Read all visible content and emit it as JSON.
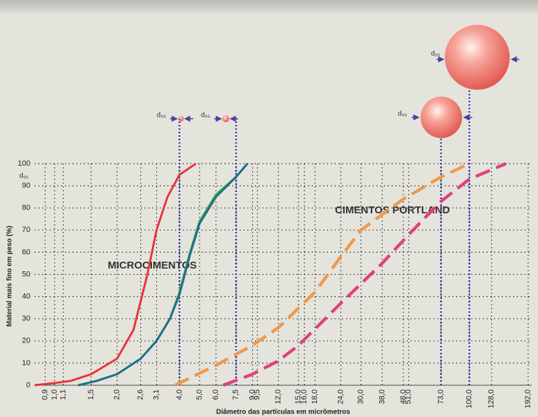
{
  "chart_data": {
    "type": "line",
    "y_label": "Material mais fino em peso (%)",
    "x_label": "Diâmetro das partículas em micrômetros",
    "log_x": true,
    "grid": true,
    "xlim": [
      0.8,
      200
    ],
    "ylim": [
      0,
      100
    ],
    "xticks": [
      {
        "value": 0.9,
        "label": "0,9"
      },
      {
        "value": 1.0,
        "label": "1,0"
      },
      {
        "value": 1.1,
        "label": "1,1"
      },
      {
        "value": 1.5,
        "label": "1,5"
      },
      {
        "value": 2.0,
        "label": "2,0"
      },
      {
        "value": 2.6,
        "label": "2,6"
      },
      {
        "value": 3.1,
        "label": "3,1"
      },
      {
        "value": 4.0,
        "label": "4,0"
      },
      {
        "value": 5.0,
        "label": "5,0"
      },
      {
        "value": 6.0,
        "label": "6,0"
      },
      {
        "value": 7.5,
        "label": "7,5"
      },
      {
        "value": 9.0,
        "label": "9,0"
      },
      {
        "value": 9.5,
        "label": "9,5"
      },
      {
        "value": 12.0,
        "label": "12,0"
      },
      {
        "value": 15.0,
        "label": "15,0"
      },
      {
        "value": 16.0,
        "label": "16,0"
      },
      {
        "value": 18.0,
        "label": "18,0"
      },
      {
        "value": 24.0,
        "label": "24,0"
      },
      {
        "value": 30.0,
        "label": "30,0"
      },
      {
        "value": 38.0,
        "label": "38,0"
      },
      {
        "value": 48.0,
        "label": "48,0"
      },
      {
        "value": 51.0,
        "label": "51,0"
      },
      {
        "value": 73.0,
        "label": "73,0"
      },
      {
        "value": 100.0,
        "label": "100,0"
      },
      {
        "value": 128.0,
        "label": "128,0"
      },
      {
        "value": 192.0,
        "label": "192,0"
      }
    ],
    "yticks": [
      0,
      10,
      20,
      30,
      40,
      50,
      60,
      70,
      80,
      90,
      100
    ],
    "series": [
      {
        "color": "#e8333a",
        "dashed": false,
        "x": [
          0.8,
          1.0,
          1.2,
          1.5,
          2.0,
          2.4,
          2.8,
          3.1,
          3.5,
          4.0,
          4.8
        ],
        "values": [
          0,
          1,
          2,
          5,
          12,
          25,
          50,
          70,
          85,
          95,
          100
        ]
      },
      {
        "color": "#3fae3a",
        "dashed": false,
        "x": [
          1.3,
          1.6,
          2.0,
          2.6,
          3.1,
          3.6,
          4.0,
          4.5,
          5.0,
          6.0,
          7.5,
          8.5
        ],
        "values": [
          0,
          2,
          5,
          12,
          20,
          30,
          42,
          60,
          74,
          86,
          94,
          100
        ]
      },
      {
        "color": "#1e6e8e",
        "dashed": false,
        "x": [
          1.3,
          1.6,
          2.0,
          2.6,
          3.1,
          3.6,
          4.0,
          4.5,
          5.0,
          6.0,
          7.5,
          8.5
        ],
        "values": [
          0,
          2,
          5,
          12,
          20,
          30,
          41,
          59,
          73,
          85,
          94,
          100
        ]
      },
      {
        "color": "#f0984a",
        "dashed": true,
        "x": [
          3.8,
          4.0,
          6.0,
          9.0,
          12.0,
          18.0,
          24.0,
          30.0,
          48.0,
          73.0,
          100.0
        ],
        "values": [
          0,
          1,
          9,
          18,
          26,
          42,
          58,
          70,
          84,
          94,
          100
        ]
      },
      {
        "color": "#e0407e",
        "dashed": true,
        "x": [
          6.5,
          9.0,
          12.0,
          15.0,
          24.0,
          38.0,
          51.0,
          73.0,
          100.0,
          150.0
        ],
        "values": [
          0,
          5,
          11,
          18,
          37,
          55,
          68,
          83,
          93,
          100
        ]
      }
    ],
    "d95_lines": [
      4.0,
      7.5,
      73.0,
      100.0
    ],
    "annotations": [
      "MICROCIMENTOS",
      "CIMENTOS PORTLAND",
      "d₉₅",
      "d₉₅",
      "d₉₅",
      "d₉₅",
      "d₉₅"
    ]
  }
}
